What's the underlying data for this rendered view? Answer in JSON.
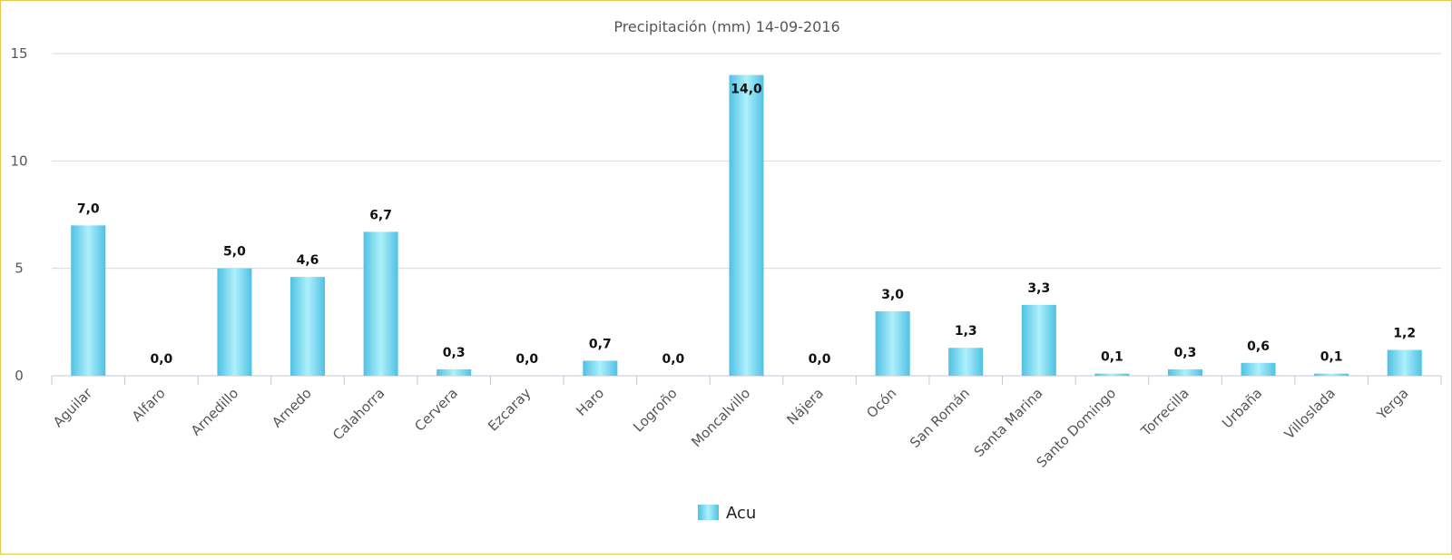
{
  "chart_data": {
    "type": "bar",
    "title": "Precipitación (mm) 14-09-2016",
    "xlabel": "",
    "ylabel": "",
    "ylim": [
      0,
      15
    ],
    "yticks": [
      0,
      5,
      10,
      15
    ],
    "grid": true,
    "legend_position": "bottom-center",
    "categories": [
      "Aguilar",
      "Alfaro",
      "Arnedillo",
      "Arnedo",
      "Calahorra",
      "Cervera",
      "Ezcaray",
      "Haro",
      "Logroño",
      "Moncalvillo",
      "Nájera",
      "Ocón",
      "San Román",
      "Santa Marina",
      "Santo Domingo",
      "Torrecilla",
      "Urbaña",
      "Villoslada",
      "Yerga"
    ],
    "series": [
      {
        "name": "Acu",
        "color": "#5ccbe8",
        "values": [
          7.0,
          0.0,
          5.0,
          4.6,
          6.7,
          0.3,
          0.0,
          0.7,
          0.0,
          14.0,
          0.0,
          3.0,
          1.3,
          3.3,
          0.1,
          0.3,
          0.6,
          0.1,
          1.2
        ],
        "labels": [
          "7,0",
          "0,0",
          "5,0",
          "4,6",
          "6,7",
          "0,3",
          "0,0",
          "0,7",
          "0,0",
          "14,0",
          "0,0",
          "3,0",
          "1,3",
          "3,3",
          "0,1",
          "0,3",
          "0,6",
          "0,1",
          "1,2"
        ]
      }
    ]
  }
}
